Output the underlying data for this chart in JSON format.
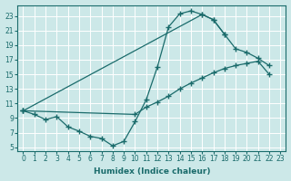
{
  "xlabel": "Humidex (Indice chaleur)",
  "bg_color": "#cce8e8",
  "line_color": "#1a6b6b",
  "xlim": [
    -0.5,
    23.5
  ],
  "ylim": [
    4.5,
    24.5
  ],
  "xticks": [
    0,
    1,
    2,
    3,
    4,
    5,
    6,
    7,
    8,
    9,
    10,
    11,
    12,
    13,
    14,
    15,
    16,
    17,
    18,
    19,
    20,
    21,
    22,
    23
  ],
  "yticks": [
    5,
    7,
    9,
    11,
    13,
    15,
    17,
    19,
    21,
    23
  ],
  "series": [
    {
      "x": [
        0,
        1,
        2,
        3,
        4,
        5,
        6,
        7,
        8,
        9,
        10,
        11,
        12,
        13,
        14,
        15,
        16,
        17,
        18
      ],
      "y": [
        10.0,
        9.5,
        8.8,
        9.2,
        7.8,
        7.2,
        6.5,
        6.2,
        5.2,
        5.8,
        8.5,
        11.5,
        16.0,
        21.5,
        23.3,
        23.7,
        23.2,
        22.5,
        20.5
      ]
    },
    {
      "x": [
        0,
        16,
        17,
        18,
        19,
        20,
        21,
        22
      ],
      "y": [
        10.0,
        23.2,
        22.5,
        20.5,
        18.5,
        18.0,
        17.2,
        16.2
      ]
    },
    {
      "x": [
        0,
        10,
        11,
        12,
        13,
        14,
        15,
        16,
        17,
        18,
        19,
        20,
        21,
        22
      ],
      "y": [
        10.0,
        9.5,
        10.5,
        11.2,
        12.0,
        13.0,
        13.8,
        14.5,
        15.2,
        15.8,
        16.2,
        16.5,
        16.8,
        15.0
      ]
    }
  ]
}
